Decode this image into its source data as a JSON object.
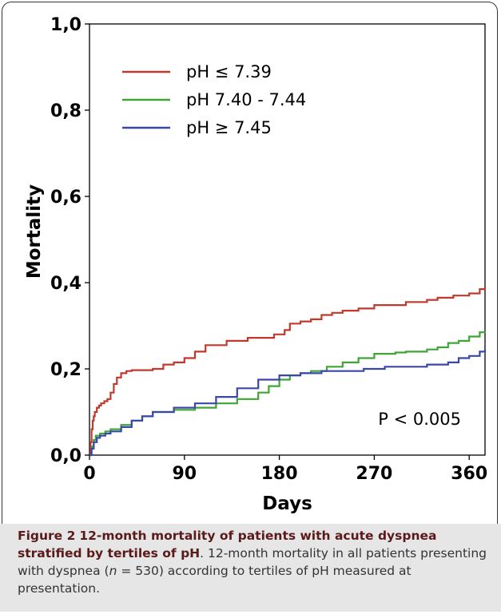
{
  "chart_data": {
    "type": "line",
    "step": true,
    "xlabel": "Days",
    "ylabel": "Mortality",
    "xlim": [
      0,
      375
    ],
    "ylim": [
      0,
      1.0
    ],
    "xticks": [
      0,
      90,
      180,
      270,
      360
    ],
    "xtick_labels": [
      "0",
      "90",
      "180",
      "270",
      "360"
    ],
    "yticks": [
      0,
      0.2,
      0.4,
      0.6,
      0.8,
      1.0
    ],
    "ytick_labels": [
      "0,0",
      "0,2",
      "0,4",
      "0,6",
      "0,8",
      "1,0"
    ],
    "grid": false,
    "legend_position": "top-left",
    "series": [
      {
        "name": "pH ≤ 7.39",
        "color": "#c0392b",
        "x": [
          0,
          1,
          2,
          3,
          4,
          5,
          7,
          9,
          11,
          14,
          17,
          20,
          23,
          26,
          30,
          35,
          40,
          50,
          60,
          70,
          80,
          90,
          100,
          110,
          130,
          150,
          170,
          175,
          185,
          190,
          200,
          210,
          220,
          230,
          240,
          255,
          270,
          300,
          320,
          330,
          345,
          360,
          370,
          375
        ],
        "y": [
          0,
          0.03,
          0.06,
          0.08,
          0.09,
          0.1,
          0.11,
          0.115,
          0.12,
          0.125,
          0.13,
          0.145,
          0.165,
          0.18,
          0.19,
          0.195,
          0.197,
          0.197,
          0.2,
          0.21,
          0.215,
          0.225,
          0.24,
          0.255,
          0.265,
          0.272,
          0.272,
          0.28,
          0.29,
          0.305,
          0.31,
          0.315,
          0.325,
          0.33,
          0.335,
          0.34,
          0.348,
          0.355,
          0.36,
          0.365,
          0.37,
          0.375,
          0.385,
          0.39
        ]
      },
      {
        "name": "pH 7.40 - 7.44",
        "color": "#3fa535",
        "x": [
          0,
          2,
          4,
          6,
          10,
          15,
          20,
          30,
          40,
          50,
          60,
          80,
          100,
          120,
          140,
          160,
          170,
          180,
          190,
          200,
          210,
          225,
          240,
          255,
          270,
          290,
          300,
          310,
          320,
          330,
          340,
          350,
          360,
          370,
          375
        ],
        "y": [
          0,
          0.02,
          0.035,
          0.045,
          0.05,
          0.055,
          0.06,
          0.07,
          0.08,
          0.09,
          0.1,
          0.105,
          0.11,
          0.12,
          0.13,
          0.145,
          0.16,
          0.175,
          0.185,
          0.19,
          0.195,
          0.205,
          0.215,
          0.225,
          0.235,
          0.238,
          0.24,
          0.24,
          0.245,
          0.25,
          0.26,
          0.265,
          0.275,
          0.285,
          0.287
        ]
      },
      {
        "name": "pH ≥ 7.45",
        "color": "#3a47a8",
        "x": [
          0,
          2,
          4,
          7,
          10,
          15,
          20,
          30,
          40,
          50,
          60,
          80,
          100,
          120,
          140,
          160,
          180,
          200,
          220,
          240,
          260,
          280,
          300,
          320,
          340,
          350,
          360,
          370,
          375
        ],
        "y": [
          0,
          0.015,
          0.03,
          0.04,
          0.045,
          0.05,
          0.055,
          0.065,
          0.08,
          0.09,
          0.1,
          0.11,
          0.12,
          0.135,
          0.155,
          0.175,
          0.185,
          0.19,
          0.195,
          0.195,
          0.2,
          0.205,
          0.205,
          0.21,
          0.215,
          0.225,
          0.23,
          0.24,
          0.245
        ]
      }
    ],
    "annotation": "P < 0.005"
  },
  "caption": {
    "figure_label": "Figure 2",
    "title": "12-month mortality of patients with acute dyspnea stratified by tertiles of pH",
    "body_before_n": ". 12-month mortality in all patients presenting with dyspnea (",
    "n_symbol": "n",
    "body_after_n": " = 530) according to tertiles of pH measured at presentation."
  }
}
